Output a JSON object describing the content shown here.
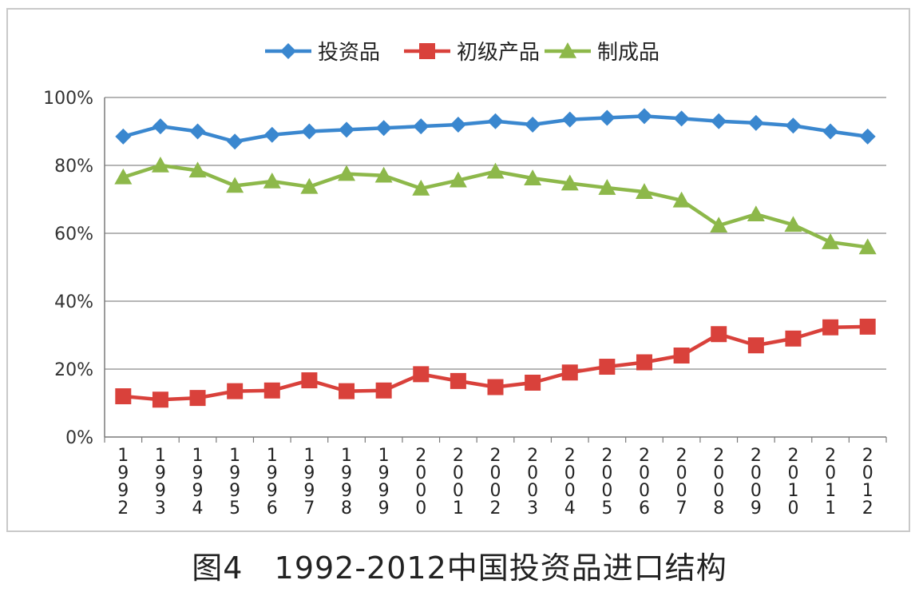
{
  "caption": {
    "figure_label": "图4",
    "title": "1992-2012中国投资品进口结构"
  },
  "chart_data": {
    "type": "line",
    "categories": [
      "1992",
      "1993",
      "1994",
      "1995",
      "1996",
      "1997",
      "1998",
      "1999",
      "2000",
      "2001",
      "2002",
      "2003",
      "2004",
      "2005",
      "2006",
      "2007",
      "2008",
      "2009",
      "2010",
      "2011",
      "2012"
    ],
    "y_ticks": [
      "0%",
      "20%",
      "40%",
      "60%",
      "80%",
      "100%"
    ],
    "ylim": [
      0,
      100
    ],
    "y_unit": "%",
    "grid": true,
    "legend_position": "top",
    "series": [
      {
        "name": "投资品",
        "color": "#3a87cf",
        "marker": "diamond",
        "values": [
          88.5,
          91.5,
          90,
          87,
          89,
          90,
          90.5,
          91,
          91.5,
          92,
          93,
          92,
          93.5,
          94,
          94.5,
          93.8,
          93,
          92.5,
          91.7,
          90,
          88.5
        ]
      },
      {
        "name": "初级产品",
        "color": "#d9413b",
        "marker": "square",
        "values": [
          12,
          11,
          11.5,
          13.5,
          13.7,
          16.7,
          13.5,
          13.7,
          18.5,
          16.5,
          14.7,
          16,
          19,
          20.7,
          22,
          24,
          30.3,
          27,
          29,
          32.3,
          32.5
        ]
      },
      {
        "name": "制成品",
        "color": "#8db84a",
        "marker": "triangle",
        "values": [
          76.5,
          80,
          78.5,
          74,
          75.3,
          73.7,
          77.5,
          77,
          73.2,
          75.6,
          78.2,
          76.2,
          74.7,
          73.4,
          72.2,
          69.7,
          62.3,
          65.6,
          62.5,
          57.4,
          55.9
        ]
      }
    ]
  }
}
